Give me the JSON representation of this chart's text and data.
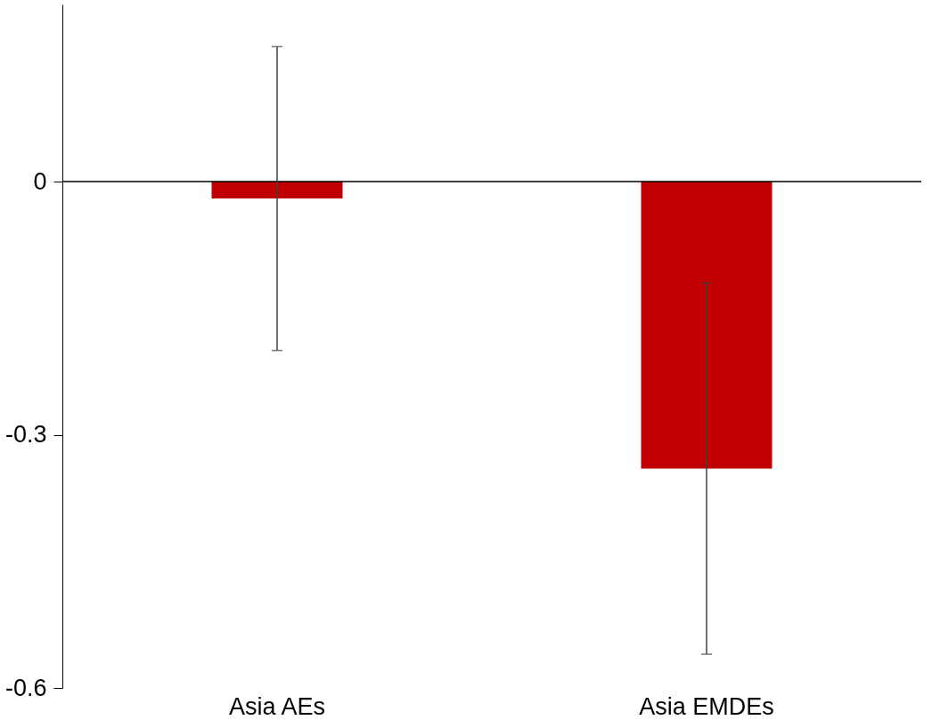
{
  "chart_data": {
    "type": "bar",
    "categories": [
      "Asia AEs",
      "Asia EMDEs"
    ],
    "values": [
      -0.02,
      -0.34
    ],
    "color": "#c00000",
    "errors": [
      [
        -0.2,
        0.16
      ],
      [
        -0.56,
        -0.12
      ]
    ],
    "ylim": [
      -0.6,
      0.21
    ],
    "yticks": [
      {
        "value": 0,
        "label": "0"
      },
      {
        "value": -0.3,
        "label": "-0.3"
      },
      {
        "value": -0.6,
        "label": "-0.6"
      }
    ],
    "ref_lines": [
      {
        "axis": "y",
        "value": 0,
        "color": "#000000"
      }
    ],
    "grid": false
  }
}
